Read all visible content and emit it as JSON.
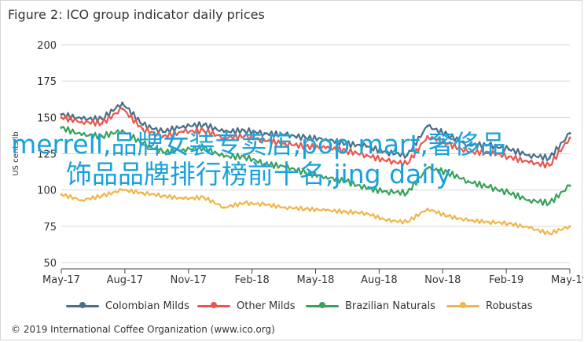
{
  "page": {
    "title": "Figure 2: ICO group indicator daily prices",
    "credit": "© 2019 International Coffee Organization (www.ico.org)",
    "overlay_text": "merrell,品牌女装专卖店,pop mart,奢侈品饰品品牌排行榜前十名,jing daily"
  },
  "chart_data": {
    "type": "line",
    "title": "Figure 2: ICO group indicator daily prices",
    "ylabel": "US cents/lb",
    "xlabel": "",
    "x_ticks": [
      "May-17",
      "Aug-17",
      "Nov-17",
      "Feb-18",
      "May-18",
      "Aug-18",
      "Nov-18",
      "Feb-19",
      "May-19"
    ],
    "x_range": [
      0,
      25
    ],
    "ylim": [
      50,
      200
    ],
    "y_ticks": [
      50,
      75,
      100,
      125,
      150,
      175,
      200
    ],
    "grid": "horizontal",
    "legend_position": "bottom",
    "x": [
      0,
      1,
      2,
      3,
      4,
      5,
      6,
      7,
      8,
      9,
      10,
      11,
      12,
      13,
      14,
      15,
      16,
      17,
      18,
      19,
      20,
      21,
      22,
      23,
      24,
      25
    ],
    "series": [
      {
        "name": "Colombian Milds",
        "color": "#4a6f8a",
        "values": [
          152,
          149,
          149,
          160,
          145,
          140,
          144,
          145,
          140,
          141,
          139,
          138,
          136,
          135,
          132,
          130,
          126,
          124,
          144,
          138,
          131,
          131,
          128,
          124,
          122,
          139
        ]
      },
      {
        "name": "Other Milds",
        "color": "#e8574f",
        "values": [
          150,
          147,
          146,
          156,
          142,
          137,
          140,
          141,
          136,
          137,
          134,
          132,
          130,
          129,
          127,
          124,
          120,
          118,
          137,
          132,
          126,
          126,
          123,
          119,
          117,
          136
        ]
      },
      {
        "name": "Brazilian Naturals",
        "color": "#38a15a",
        "values": [
          143,
          138,
          137,
          141,
          132,
          126,
          128,
          129,
          123,
          123,
          118,
          116,
          112,
          109,
          106,
          101,
          99,
          98,
          115,
          112,
          106,
          102,
          98,
          93,
          91,
          103
        ]
      },
      {
        "name": "Robustas",
        "color": "#f0b64c",
        "values": [
          97,
          93,
          96,
          100,
          98,
          96,
          94,
          95,
          88,
          91,
          90,
          88,
          87,
          86,
          85,
          84,
          79,
          78,
          87,
          82,
          79,
          78,
          77,
          74,
          70,
          75
        ]
      }
    ]
  }
}
